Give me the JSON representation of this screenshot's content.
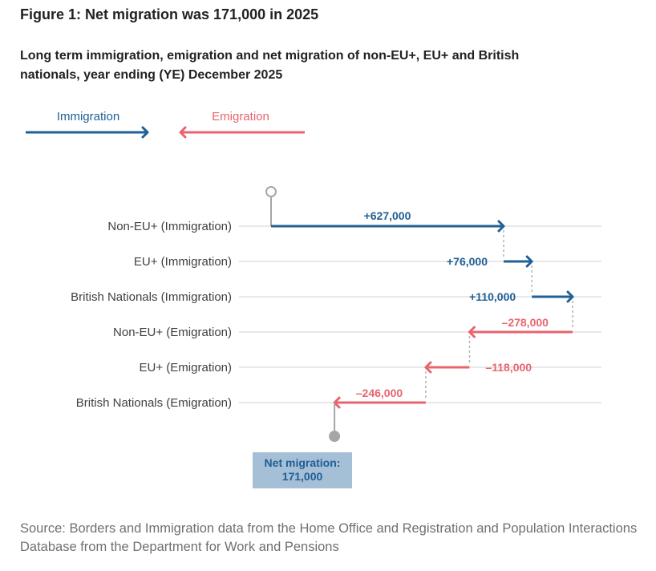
{
  "title": "Figure 1: Net migration was 171,000 in 2025",
  "subtitle": "Long term immigration, emigration and net migration of non-EU+, EU+ and British nationals, year ending (YE) December 2025",
  "source": "Source: Borders and Immigration data from the Home Office and Registration and Population Interactions Database from the Department for Work and Pensions",
  "colors": {
    "immigration": "#206095",
    "emigration": "#e8646f",
    "gridline": "#d9d9d9",
    "connector": "#b3b3b3",
    "marker": "#a6a6a6",
    "net_box_fill": "#a4bfd6",
    "net_box_text": "#206095"
  },
  "chart_data": {
    "type": "waterfall",
    "legend": [
      {
        "name": "Immigration",
        "direction": "right",
        "color": "#206095"
      },
      {
        "name": "Emigration",
        "direction": "left",
        "color": "#e8646f"
      }
    ],
    "categories": [
      "Non-EU+ (Immigration)",
      "EU+ (Immigration)",
      "British Nationals (Immigration)",
      "Non-EU+ (Emigration)",
      "EU+ (Emigration)",
      "British Nationals (Emigration)"
    ],
    "values": [
      627000,
      76000,
      110000,
      -278000,
      -118000,
      -246000
    ],
    "value_labels": [
      "+627,000",
      "+76,000",
      "+110,000",
      "–278,000",
      "–118,000",
      "–246,000"
    ],
    "net": {
      "value": 171000,
      "label_line1": "Net migration:",
      "label_line2": "171,000"
    },
    "xlim": [
      0,
      813000
    ]
  }
}
